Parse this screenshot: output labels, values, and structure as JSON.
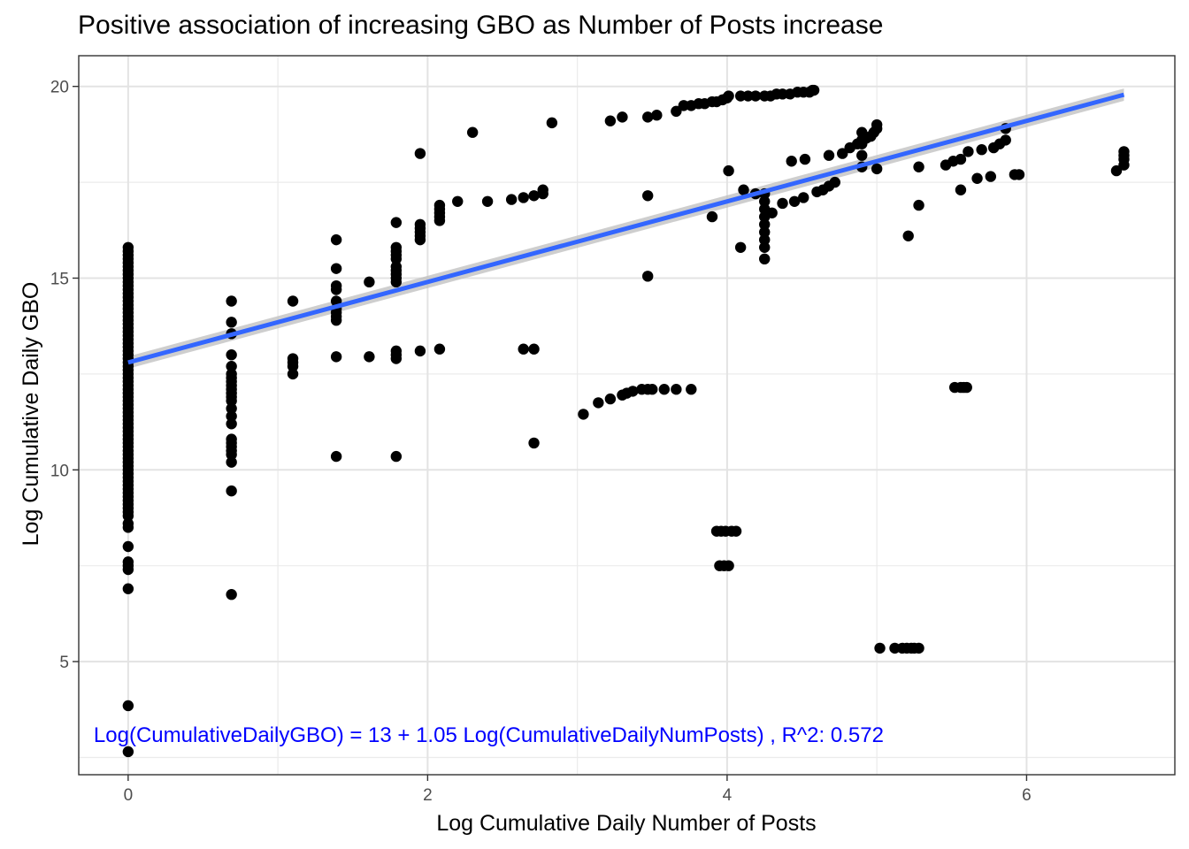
{
  "chart_data": {
    "type": "scatter",
    "title": "Positive association of increasing GBO as Number of Posts increase",
    "xlabel": "Log Cumulative Daily Number of Posts",
    "ylabel": "Log Cumulative Daily GBO",
    "xlim": [
      -0.33,
      6.99
    ],
    "ylim": [
      2.05,
      20.8
    ],
    "x_ticks": [
      0,
      2,
      4,
      6
    ],
    "y_ticks": [
      5,
      10,
      15,
      20
    ],
    "grid": true,
    "legend": "none",
    "point_color": "#000000",
    "fit_line": {
      "intercept": 12.8,
      "slope": 1.05,
      "x_range": [
        0,
        6.65
      ],
      "color": "#3366ff",
      "band_color": "#bdbdbd"
    },
    "annotation": {
      "text": "Log(CumulativeDailyGBO) = 13 + 1.05 Log(CumulativeDailyNumPosts) , R^2: 0.572",
      "x": -0.23,
      "y": 2.9,
      "color": "#0000ff"
    },
    "points": [
      [
        0,
        15.8
      ],
      [
        0,
        15.7
      ],
      [
        0,
        15.6
      ],
      [
        0,
        15.5
      ],
      [
        0,
        15.4
      ],
      [
        0,
        15.3
      ],
      [
        0,
        15.2
      ],
      [
        0,
        15.1
      ],
      [
        0,
        15.0
      ],
      [
        0,
        14.9
      ],
      [
        0,
        14.8
      ],
      [
        0,
        14.7
      ],
      [
        0,
        14.6
      ],
      [
        0,
        14.5
      ],
      [
        0,
        14.4
      ],
      [
        0,
        14.3
      ],
      [
        0,
        14.2
      ],
      [
        0,
        14.1
      ],
      [
        0,
        14.0
      ],
      [
        0,
        13.9
      ],
      [
        0,
        13.8
      ],
      [
        0,
        13.7
      ],
      [
        0,
        13.6
      ],
      [
        0,
        13.5
      ],
      [
        0,
        13.4
      ],
      [
        0,
        13.3
      ],
      [
        0,
        13.2
      ],
      [
        0,
        13.1
      ],
      [
        0,
        13.0
      ],
      [
        0,
        12.9
      ],
      [
        0,
        12.8
      ],
      [
        0,
        12.7
      ],
      [
        0,
        12.6
      ],
      [
        0,
        12.5
      ],
      [
        0,
        12.4
      ],
      [
        0,
        12.3
      ],
      [
        0,
        12.2
      ],
      [
        0,
        12.1
      ],
      [
        0,
        12.0
      ],
      [
        0,
        11.9
      ],
      [
        0,
        11.8
      ],
      [
        0,
        11.7
      ],
      [
        0,
        11.6
      ],
      [
        0,
        11.5
      ],
      [
        0,
        11.4
      ],
      [
        0,
        11.3
      ],
      [
        0,
        11.2
      ],
      [
        0,
        11.1
      ],
      [
        0,
        11.0
      ],
      [
        0,
        10.9
      ],
      [
        0,
        10.8
      ],
      [
        0,
        10.7
      ],
      [
        0,
        10.6
      ],
      [
        0,
        10.5
      ],
      [
        0,
        10.4
      ],
      [
        0,
        10.3
      ],
      [
        0,
        10.2
      ],
      [
        0,
        10.1
      ],
      [
        0,
        10.0
      ],
      [
        0,
        9.9
      ],
      [
        0,
        9.8
      ],
      [
        0,
        9.7
      ],
      [
        0,
        9.6
      ],
      [
        0,
        9.5
      ],
      [
        0,
        9.4
      ],
      [
        0,
        9.3
      ],
      [
        0,
        9.2
      ],
      [
        0,
        9.1
      ],
      [
        0,
        9.0
      ],
      [
        0,
        8.9
      ],
      [
        0,
        8.8
      ],
      [
        0,
        8.6
      ],
      [
        0,
        8.5
      ],
      [
        0,
        8.0
      ],
      [
        0,
        7.6
      ],
      [
        0,
        7.5
      ],
      [
        0,
        7.4
      ],
      [
        0,
        6.9
      ],
      [
        0,
        3.85
      ],
      [
        0,
        2.65
      ],
      [
        0.69,
        14.4
      ],
      [
        0.69,
        13.85
      ],
      [
        0.69,
        13.55
      ],
      [
        0.69,
        13.0
      ],
      [
        0.69,
        12.7
      ],
      [
        0.69,
        12.5
      ],
      [
        0.69,
        12.4
      ],
      [
        0.69,
        12.3
      ],
      [
        0.69,
        12.2
      ],
      [
        0.69,
        12.1
      ],
      [
        0.69,
        12.0
      ],
      [
        0.69,
        11.9
      ],
      [
        0.69,
        11.8
      ],
      [
        0.69,
        11.6
      ],
      [
        0.69,
        11.4
      ],
      [
        0.69,
        11.2
      ],
      [
        0.69,
        10.8
      ],
      [
        0.69,
        10.7
      ],
      [
        0.69,
        10.6
      ],
      [
        0.69,
        10.5
      ],
      [
        0.69,
        10.4
      ],
      [
        0.69,
        10.2
      ],
      [
        0.69,
        9.45
      ],
      [
        0.69,
        6.75
      ],
      [
        1.1,
        14.4
      ],
      [
        1.1,
        12.9
      ],
      [
        1.1,
        12.8
      ],
      [
        1.1,
        12.7
      ],
      [
        1.1,
        12.5
      ],
      [
        1.39,
        16.0
      ],
      [
        1.39,
        15.25
      ],
      [
        1.39,
        14.8
      ],
      [
        1.39,
        14.7
      ],
      [
        1.39,
        14.4
      ],
      [
        1.39,
        14.2
      ],
      [
        1.39,
        14.1
      ],
      [
        1.39,
        14.0
      ],
      [
        1.39,
        13.9
      ],
      [
        1.39,
        12.95
      ],
      [
        1.39,
        10.35
      ],
      [
        1.61,
        14.9
      ],
      [
        1.61,
        12.95
      ],
      [
        1.79,
        16.45
      ],
      [
        1.79,
        15.8
      ],
      [
        1.79,
        15.7
      ],
      [
        1.79,
        15.6
      ],
      [
        1.79,
        15.5
      ],
      [
        1.79,
        15.3
      ],
      [
        1.79,
        15.2
      ],
      [
        1.79,
        15.1
      ],
      [
        1.79,
        15.0
      ],
      [
        1.79,
        14.9
      ],
      [
        1.79,
        13.1
      ],
      [
        1.79,
        13.0
      ],
      [
        1.79,
        12.9
      ],
      [
        1.79,
        10.35
      ],
      [
        1.95,
        18.25
      ],
      [
        1.95,
        16.4
      ],
      [
        1.95,
        16.3
      ],
      [
        1.95,
        16.2
      ],
      [
        1.95,
        16.1
      ],
      [
        1.95,
        16.0
      ],
      [
        1.95,
        13.1
      ],
      [
        2.08,
        16.9
      ],
      [
        2.08,
        16.8
      ],
      [
        2.08,
        16.7
      ],
      [
        2.08,
        16.6
      ],
      [
        2.08,
        16.5
      ],
      [
        2.08,
        13.15
      ],
      [
        2.2,
        17.0
      ],
      [
        2.3,
        18.8
      ],
      [
        2.4,
        17.0
      ],
      [
        2.56,
        17.05
      ],
      [
        2.64,
        17.1
      ],
      [
        2.71,
        17.15
      ],
      [
        2.77,
        17.2
      ],
      [
        2.77,
        17.3
      ],
      [
        2.83,
        19.05
      ],
      [
        2.64,
        13.15
      ],
      [
        2.71,
        13.15
      ],
      [
        2.71,
        10.7
      ],
      [
        3.04,
        11.45
      ],
      [
        3.14,
        11.75
      ],
      [
        3.22,
        11.85
      ],
      [
        3.3,
        11.95
      ],
      [
        3.33,
        12.0
      ],
      [
        3.37,
        12.05
      ],
      [
        3.43,
        12.1
      ],
      [
        3.47,
        12.1
      ],
      [
        3.5,
        12.1
      ],
      [
        3.58,
        12.1
      ],
      [
        3.66,
        12.1
      ],
      [
        3.76,
        12.1
      ],
      [
        3.22,
        19.1
      ],
      [
        3.3,
        19.2
      ],
      [
        3.47,
        19.2
      ],
      [
        3.53,
        19.25
      ],
      [
        3.66,
        19.35
      ],
      [
        3.71,
        19.5
      ],
      [
        3.76,
        19.5
      ],
      [
        3.81,
        19.55
      ],
      [
        3.85,
        19.55
      ],
      [
        3.9,
        19.6
      ],
      [
        3.93,
        19.6
      ],
      [
        3.97,
        19.65
      ],
      [
        4.0,
        19.7
      ],
      [
        4.01,
        19.75
      ],
      [
        4.09,
        19.75
      ],
      [
        4.14,
        19.75
      ],
      [
        4.19,
        19.75
      ],
      [
        4.25,
        19.75
      ],
      [
        4.29,
        19.75
      ],
      [
        4.33,
        19.8
      ],
      [
        4.37,
        19.8
      ],
      [
        4.42,
        19.8
      ],
      [
        4.47,
        19.85
      ],
      [
        4.51,
        19.85
      ],
      [
        4.55,
        19.85
      ],
      [
        4.57,
        19.9
      ],
      [
        4.58,
        19.9
      ],
      [
        3.47,
        17.15
      ],
      [
        3.47,
        15.05
      ],
      [
        3.9,
        16.6
      ],
      [
        4.01,
        17.8
      ],
      [
        4.09,
        15.8
      ],
      [
        4.11,
        17.3
      ],
      [
        4.19,
        17.2
      ],
      [
        4.25,
        17.2
      ],
      [
        4.25,
        17.0
      ],
      [
        4.25,
        16.8
      ],
      [
        4.25,
        16.6
      ],
      [
        4.25,
        16.4
      ],
      [
        4.25,
        16.2
      ],
      [
        4.25,
        16.0
      ],
      [
        4.25,
        15.8
      ],
      [
        4.25,
        15.5
      ],
      [
        4.3,
        16.7
      ],
      [
        4.37,
        16.95
      ],
      [
        4.45,
        17.0
      ],
      [
        4.51,
        17.1
      ],
      [
        4.43,
        18.05
      ],
      [
        4.52,
        18.1
      ],
      [
        4.6,
        17.25
      ],
      [
        4.64,
        17.3
      ],
      [
        4.68,
        17.4
      ],
      [
        4.72,
        17.5
      ],
      [
        4.68,
        18.2
      ],
      [
        4.77,
        18.25
      ],
      [
        4.82,
        18.4
      ],
      [
        4.87,
        18.5
      ],
      [
        4.9,
        18.6
      ],
      [
        4.93,
        18.65
      ],
      [
        4.96,
        18.7
      ],
      [
        4.98,
        18.8
      ],
      [
        5.0,
        18.9
      ],
      [
        5.0,
        19.0
      ],
      [
        4.9,
        18.8
      ],
      [
        4.9,
        18.5
      ],
      [
        4.9,
        18.2
      ],
      [
        4.9,
        17.9
      ],
      [
        5.0,
        17.85
      ],
      [
        3.93,
        8.4
      ],
      [
        3.96,
        8.4
      ],
      [
        3.99,
        8.4
      ],
      [
        4.03,
        8.4
      ],
      [
        4.06,
        8.4
      ],
      [
        3.95,
        7.5
      ],
      [
        3.98,
        7.5
      ],
      [
        4.01,
        7.5
      ],
      [
        5.02,
        5.35
      ],
      [
        5.12,
        5.35
      ],
      [
        5.17,
        5.35
      ],
      [
        5.2,
        5.35
      ],
      [
        5.23,
        5.35
      ],
      [
        5.25,
        5.35
      ],
      [
        5.28,
        5.35
      ],
      [
        5.21,
        16.1
      ],
      [
        5.28,
        16.9
      ],
      [
        5.28,
        17.9
      ],
      [
        5.46,
        17.95
      ],
      [
        5.51,
        18.05
      ],
      [
        5.56,
        17.3
      ],
      [
        5.56,
        18.1
      ],
      [
        5.61,
        18.3
      ],
      [
        5.67,
        17.6
      ],
      [
        5.7,
        18.35
      ],
      [
        5.76,
        17.65
      ],
      [
        5.78,
        18.4
      ],
      [
        5.82,
        18.5
      ],
      [
        5.86,
        18.6
      ],
      [
        5.86,
        18.9
      ],
      [
        5.92,
        17.7
      ],
      [
        5.95,
        17.7
      ],
      [
        5.52,
        12.15
      ],
      [
        5.56,
        12.15
      ],
      [
        5.58,
        12.15
      ],
      [
        5.6,
        12.15
      ],
      [
        6.6,
        17.8
      ],
      [
        6.65,
        17.95
      ],
      [
        6.65,
        18.1
      ],
      [
        6.65,
        18.2
      ],
      [
        6.65,
        18.3
      ]
    ]
  }
}
